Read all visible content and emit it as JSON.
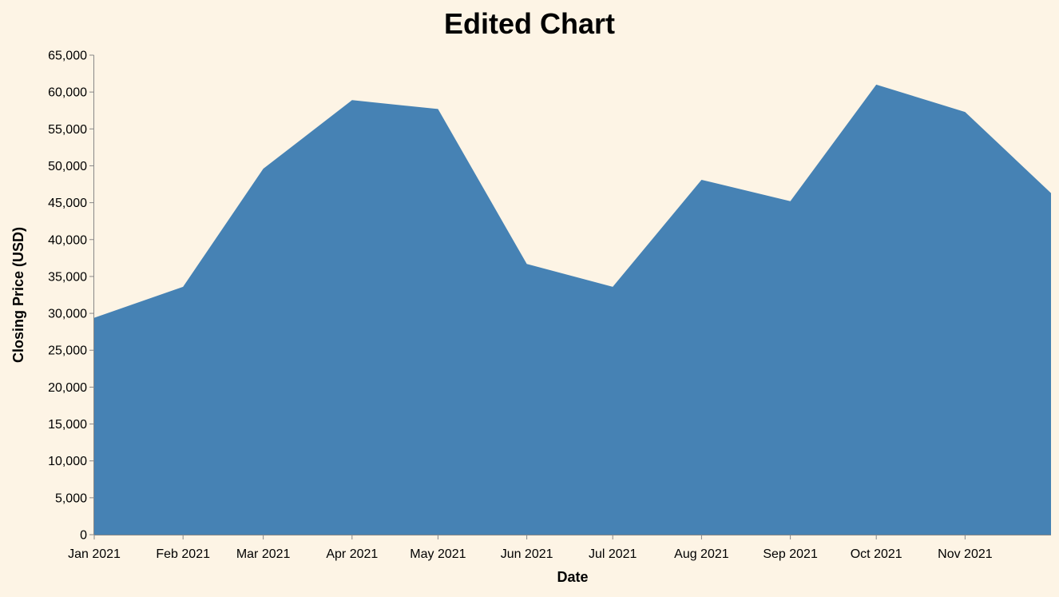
{
  "chart_data": {
    "type": "area",
    "title": "Edited Chart",
    "xlabel": "Date",
    "ylabel": "Closing Price (USD)",
    "x": [
      "2021-01-01",
      "2021-02-01",
      "2021-03-01",
      "2021-04-01",
      "2021-05-01",
      "2021-06-01",
      "2021-07-01",
      "2021-08-01",
      "2021-09-01",
      "2021-10-01",
      "2021-11-01",
      "2021-12-01"
    ],
    "values": [
      29400,
      33600,
      49600,
      58900,
      57700,
      36700,
      33600,
      48100,
      45200,
      61000,
      57300,
      46300
    ],
    "x_ticks": [
      "Jan 2021",
      "Feb 2021",
      "Mar 2021",
      "Apr 2021",
      "May 2021",
      "Jun 2021",
      "Jul 2021",
      "Aug 2021",
      "Sep 2021",
      "Oct 2021",
      "Nov 2021"
    ],
    "ylim": [
      0,
      65000
    ],
    "y_ticks": [
      "0",
      "5,000",
      "10,000",
      "15,000",
      "20,000",
      "25,000",
      "30,000",
      "35,000",
      "40,000",
      "45,000",
      "50,000",
      "55,000",
      "60,000",
      "65,000"
    ],
    "grid": false,
    "colors": {
      "area": "#4682b4",
      "background": "#fdf4e5",
      "axis": "#888888"
    }
  }
}
